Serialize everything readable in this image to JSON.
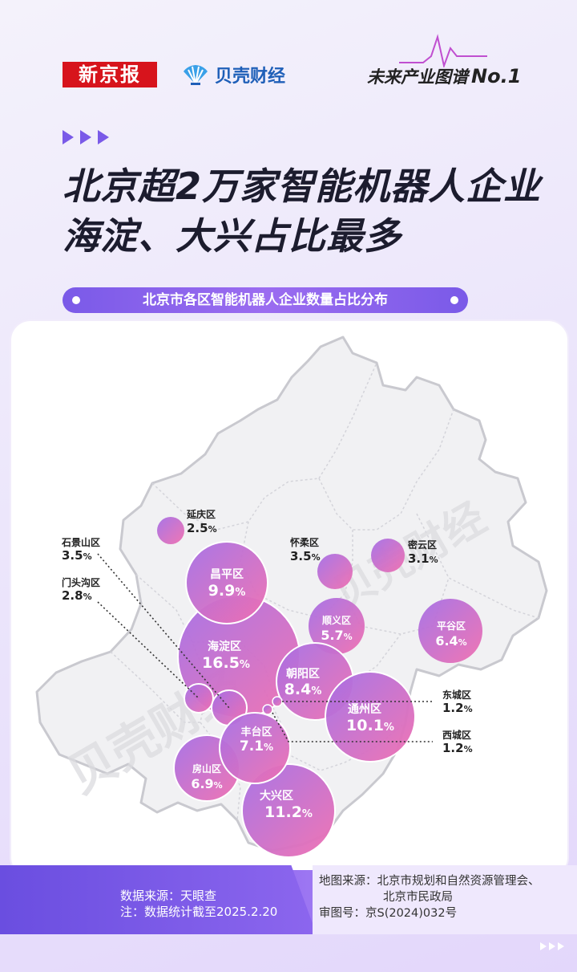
{
  "header": {
    "brand1": "新京报",
    "brand2": "贝壳财经",
    "series": "未来产业图谱",
    "series_no": "No.1"
  },
  "title": {
    "line1": "北京超2万家智能机器人企业",
    "line2": "海淀、大兴占比最多"
  },
  "subtitle": "北京市各区智能机器人企业数量占比分布",
  "watermark": "贝壳财经",
  "colors": {
    "accent": "#7a5ae8",
    "bubble_start": "#a56fe6",
    "bubble_end": "#f06fb0",
    "map_fill": "#f1f1f3",
    "map_stroke": "#c9c9cf"
  },
  "districts": [
    {
      "name": "延庆区",
      "value": "2.5"
    },
    {
      "name": "怀柔区",
      "value": "3.5"
    },
    {
      "name": "密云区",
      "value": "3.1"
    },
    {
      "name": "昌平区",
      "value": "9.9"
    },
    {
      "name": "海淀区",
      "value": "16.5"
    },
    {
      "name": "顺义区",
      "value": "5.7"
    },
    {
      "name": "平谷区",
      "value": "6.4"
    },
    {
      "name": "朝阳区",
      "value": "8.4"
    },
    {
      "name": "通州区",
      "value": "10.1"
    },
    {
      "name": "丰台区",
      "value": "7.1"
    },
    {
      "name": "房山区",
      "value": "6.9"
    },
    {
      "name": "大兴区",
      "value": "11.2"
    },
    {
      "name": "石景山区",
      "value": "3.5"
    },
    {
      "name": "门头沟区",
      "value": "2.8"
    },
    {
      "name": "东城区",
      "value": "1.2"
    },
    {
      "name": "西城区",
      "value": "1.2"
    }
  ],
  "unit": "%",
  "footer": {
    "data_source": "数据来源：天眼查",
    "note": "注：数据统计截至2025.2.20",
    "map_source_1": "地图来源：北京市规划和自然资源管理会、",
    "map_source_2": "北京市民政局",
    "review_no": "审图号：京S(2024)032号"
  }
}
